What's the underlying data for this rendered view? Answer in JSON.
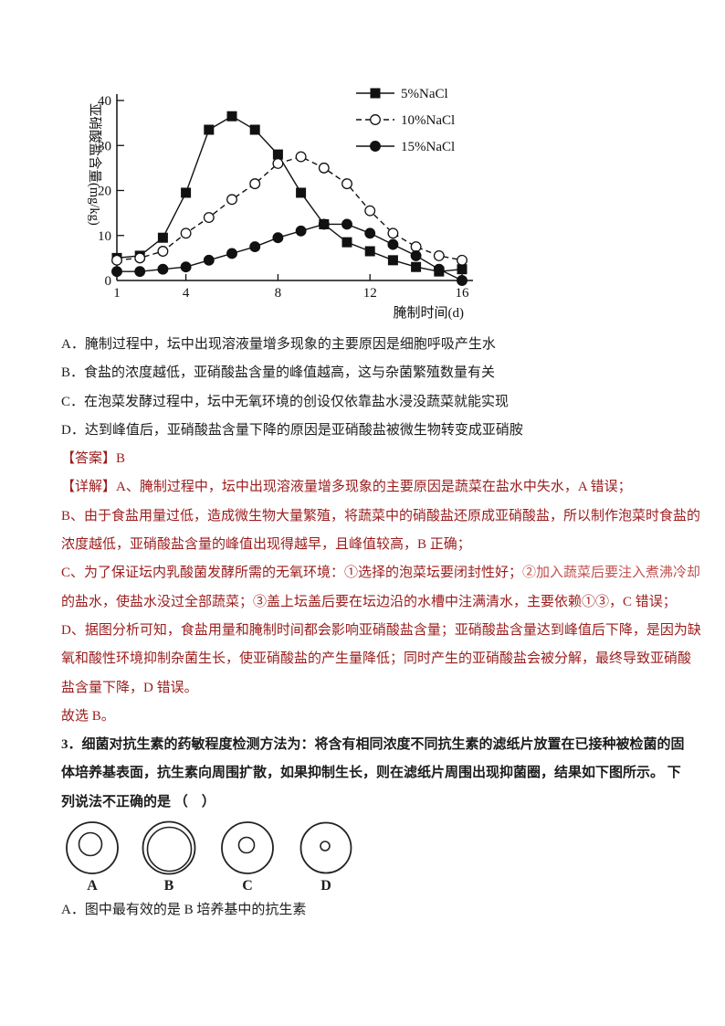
{
  "colors": {
    "body_text": "#1c1c1c",
    "answer_red": "#9b1c1c",
    "highlight_red": "#c0504d",
    "chart_ink": "#111111"
  },
  "chart_data": {
    "type": "line",
    "title": "",
    "xlabel": "腌制时间(d)",
    "ylabel": "亚硝酸盐含量(mg/kg)",
    "x": [
      1,
      2,
      3,
      4,
      5,
      6,
      7,
      8,
      9,
      10,
      11,
      12,
      13,
      14,
      15,
      16
    ],
    "xticks": [
      1,
      4,
      8,
      12,
      16
    ],
    "yticks": [
      0,
      10,
      20,
      30,
      40
    ],
    "xlim": [
      1,
      16.5
    ],
    "ylim": [
      0,
      40
    ],
    "grid": false,
    "legend_position": "top-right",
    "series": [
      {
        "name": "5%NaCl",
        "marker": "filled-square",
        "line_style": "solid",
        "values": [
          5,
          5.5,
          9.5,
          19.5,
          33.5,
          36.5,
          33.5,
          28,
          19.5,
          12.5,
          8.5,
          6.5,
          4.5,
          3,
          2,
          2.5
        ]
      },
      {
        "name": "10%NaCl",
        "marker": "open-circle",
        "line_style": "dashed",
        "values": [
          4.5,
          5,
          6.5,
          10.5,
          14,
          18,
          21.5,
          26,
          27.5,
          25,
          21.5,
          15.5,
          10.5,
          7.5,
          5.5,
          4.5
        ]
      },
      {
        "name": "15%NaCl",
        "marker": "filled-circle",
        "line_style": "solid",
        "values": [
          2,
          2,
          2.5,
          3,
          4.5,
          6,
          7.5,
          9.5,
          11,
          12.5,
          12.5,
          10.5,
          8,
          5.5,
          2.5,
          0
        ]
      }
    ]
  },
  "question2": {
    "options": [
      {
        "key": "A",
        "text": "A．腌制过程中，坛中出现溶液量增多现象的主要原因是细胞呼吸产生水"
      },
      {
        "key": "B",
        "text": "B．食盐的浓度越低，亚硝酸盐含量的峰值越高，这与杂菌繁殖数量有关"
      },
      {
        "key": "C",
        "text": "C．在泡菜发酵过程中，坛中无氧环境的创设仅依靠盐水浸没蔬菜就能实现"
      },
      {
        "key": "D",
        "text": "D．达到峰值后，亚硝酸盐含量下降的原因是亚硝酸盐被微生物转变成亚硝胺"
      }
    ],
    "answer": {
      "label": "【答案】",
      "value": "B"
    },
    "detail": {
      "lines": [
        [
          {
            "t": "【详解】A、腌制过程中，坛中出现溶液量增多现象的主要原因是蔬菜在盐水中失水，A 错误；",
            "c": "dark"
          }
        ],
        [
          {
            "t": "B、由于食盐用量过低，造成微生物大量繁殖，将蔬菜中的硝酸盐还原成亚硝酸盐，所以制作泡菜时食盐的",
            "c": "dark"
          }
        ],
        [
          {
            "t": "浓度越低，亚硝酸盐含量的峰值出现得越早，且峰值较高，B 正确；",
            "c": "dark"
          }
        ],
        [
          {
            "t": "C、为了保证坛内乳酸菌发酵所需的无氧环境：①选择的泡菜坛要闭封性好；",
            "c": "dark"
          },
          {
            "t": "②加入蔬菜后要注入煮沸冷却",
            "c": "light"
          }
        ],
        [
          {
            "t": "的盐水，使盐水没过全部蔬菜；③盖上坛盖后要在坛边沿的水槽中注满清水，主要依赖①③，C 错误；",
            "c": "dark"
          }
        ],
        [
          {
            "t": "D、据图分析可知，食盐用量和腌制时间都会影响亚硝酸盐含量；亚硝酸盐含量达到峰值后下降，是因为缺",
            "c": "dark"
          }
        ],
        [
          {
            "t": "氧和酸性环境抑制杂菌生长，使亚硝酸盐的产生量降低；同时产生的亚硝酸盐会被分解，最终导致亚硝酸",
            "c": "dark"
          }
        ],
        [
          {
            "t": "盐含量下降，D 错误。",
            "c": "dark"
          }
        ],
        [
          {
            "t": "故选 B。",
            "c": "dark"
          }
        ]
      ]
    }
  },
  "question3": {
    "stem_lines": [
      "3．细菌对抗生素的药敏程度检测方法为：将含有相同浓度不同抗生素的滤纸片放置在已接种被检菌的固",
      "体培养基表面，抗生素向周围扩散，如果抑制生长，则在滤纸片周围出现抑菌圈，结果如下图所示。 下",
      "列说法不正确的是 （　）"
    ],
    "plates": [
      {
        "label": "A",
        "outer_r": 28,
        "inner_r": 12.5,
        "inner_dx": -2,
        "inner_dy": -4
      },
      {
        "label": "B",
        "outer_r": 28.5,
        "inner_r": 24,
        "inner_dx": 0.5,
        "inner_dy": 1.5
      },
      {
        "label": "C",
        "outer_r": 28,
        "inner_r": 8.5,
        "inner_dx": -1,
        "inner_dy": -3
      },
      {
        "label": "D",
        "outer_r": 27.5,
        "inner_r": 5,
        "inner_dx": -1,
        "inner_dy": -2
      }
    ],
    "option_a": "A．图中最有效的是 B 培养基中的抗生素"
  }
}
